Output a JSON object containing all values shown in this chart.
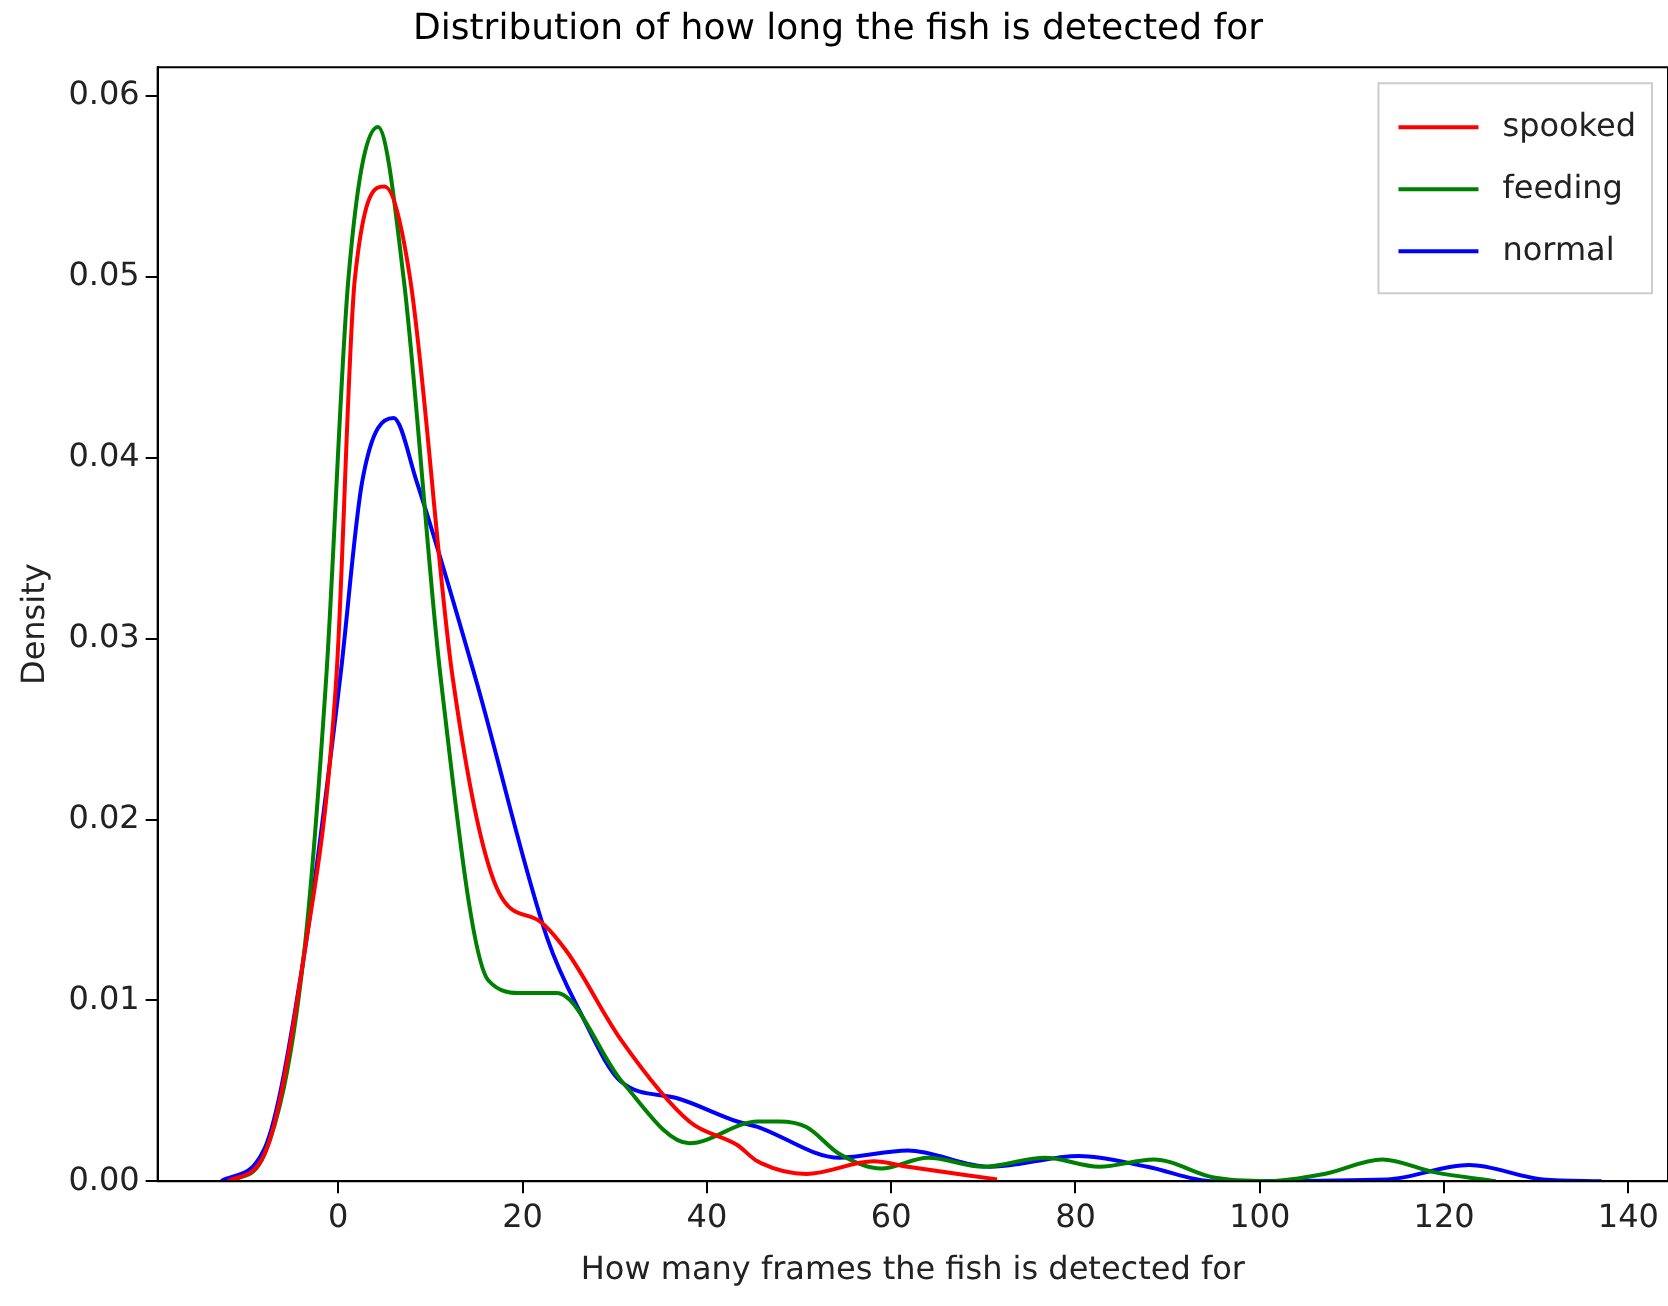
{
  "chart_data": {
    "type": "line",
    "title": "Distribution of how long the fish is detected for",
    "xlabel": "How many frames the fish is detected for",
    "ylabel": "Density",
    "xlim": [
      -19.6,
      144.3
    ],
    "ylim": [
      0,
      0.0616
    ],
    "xticks": [
      0,
      20,
      40,
      60,
      80,
      100,
      120,
      140
    ],
    "yticks": [
      {
        "value": 0,
        "label": "0.00"
      },
      {
        "value": 0.01,
        "label": "0.01"
      },
      {
        "value": 0.02,
        "label": "0.02"
      },
      {
        "value": 0.03,
        "label": "0.03"
      },
      {
        "value": 0.04,
        "label": "0.04"
      },
      {
        "value": 0.05,
        "label": "0.05"
      },
      {
        "value": 0.06,
        "label": "0.06"
      }
    ],
    "grid": false,
    "legend": "top right",
    "marker": "none",
    "line_style": "solid",
    "series": [
      {
        "name": "spooked",
        "color": "#ff0000",
        "x": [
          -12,
          -8,
          -3.8,
          -0.2,
          1.8,
          5.0,
          7.8,
          12.4,
          17.4,
          21.8,
          24.8,
          30.7,
          38.1,
          43.3,
          45.5,
          50.8,
          58.1,
          61.8,
          71.5
        ],
        "values": [
          0,
          0.0015,
          0.0122,
          0.0279,
          0.0499,
          0.055,
          0.0499,
          0.0279,
          0.016,
          0.0144,
          0.0127,
          0.0078,
          0.0033,
          0.002,
          0.0011,
          0.0004,
          0.0011,
          0.0008,
          0.0001
        ]
      },
      {
        "name": "feeding",
        "color": "#008000",
        "x": [
          -11.5,
          -8,
          -3.8,
          -1.3,
          1.1,
          4.3,
          7.1,
          11.1,
          16.3,
          20,
          23.7,
          30.8,
          38.1,
          45.5,
          47.8,
          50.8,
          54.4,
          58.9,
          64,
          70,
          76.7,
          82.6,
          88.5,
          95,
          101,
          107,
          113.3,
          118.9,
          125.6
        ],
        "values": [
          0,
          0.0015,
          0.0122,
          0.0279,
          0.0499,
          0.0583,
          0.0499,
          0.0279,
          0.0111,
          0.0104,
          0.0104,
          0.0055,
          0.0021,
          0.0033,
          0.0033,
          0.003,
          0.0015,
          0.0007,
          0.0013,
          0.0008,
          0.0013,
          0.0008,
          0.0012,
          0.0002,
          0,
          0.0004,
          0.0012,
          0.0005,
          0
        ]
      },
      {
        "name": "normal",
        "color": "#0000ff",
        "x": [
          -12.7,
          -8,
          -3.8,
          0.2,
          2.6,
          6.0,
          8.5,
          14.9,
          22.7,
          26.3,
          30.7,
          36.7,
          43.3,
          45.5,
          54.4,
          61.8,
          70.7,
          80.4,
          87.8,
          95,
          113.8,
          122.7,
          130.7,
          137.1
        ],
        "values": [
          0,
          0.0018,
          0.0122,
          0.0278,
          0.0387,
          0.0422,
          0.0387,
          0.0278,
          0.0134,
          0.0093,
          0.0055,
          0.0046,
          0.0033,
          0.003,
          0.0013,
          0.0017,
          0.0008,
          0.0014,
          0.0008,
          0,
          0.0001,
          0.0009,
          0.0001,
          0
        ]
      }
    ]
  }
}
